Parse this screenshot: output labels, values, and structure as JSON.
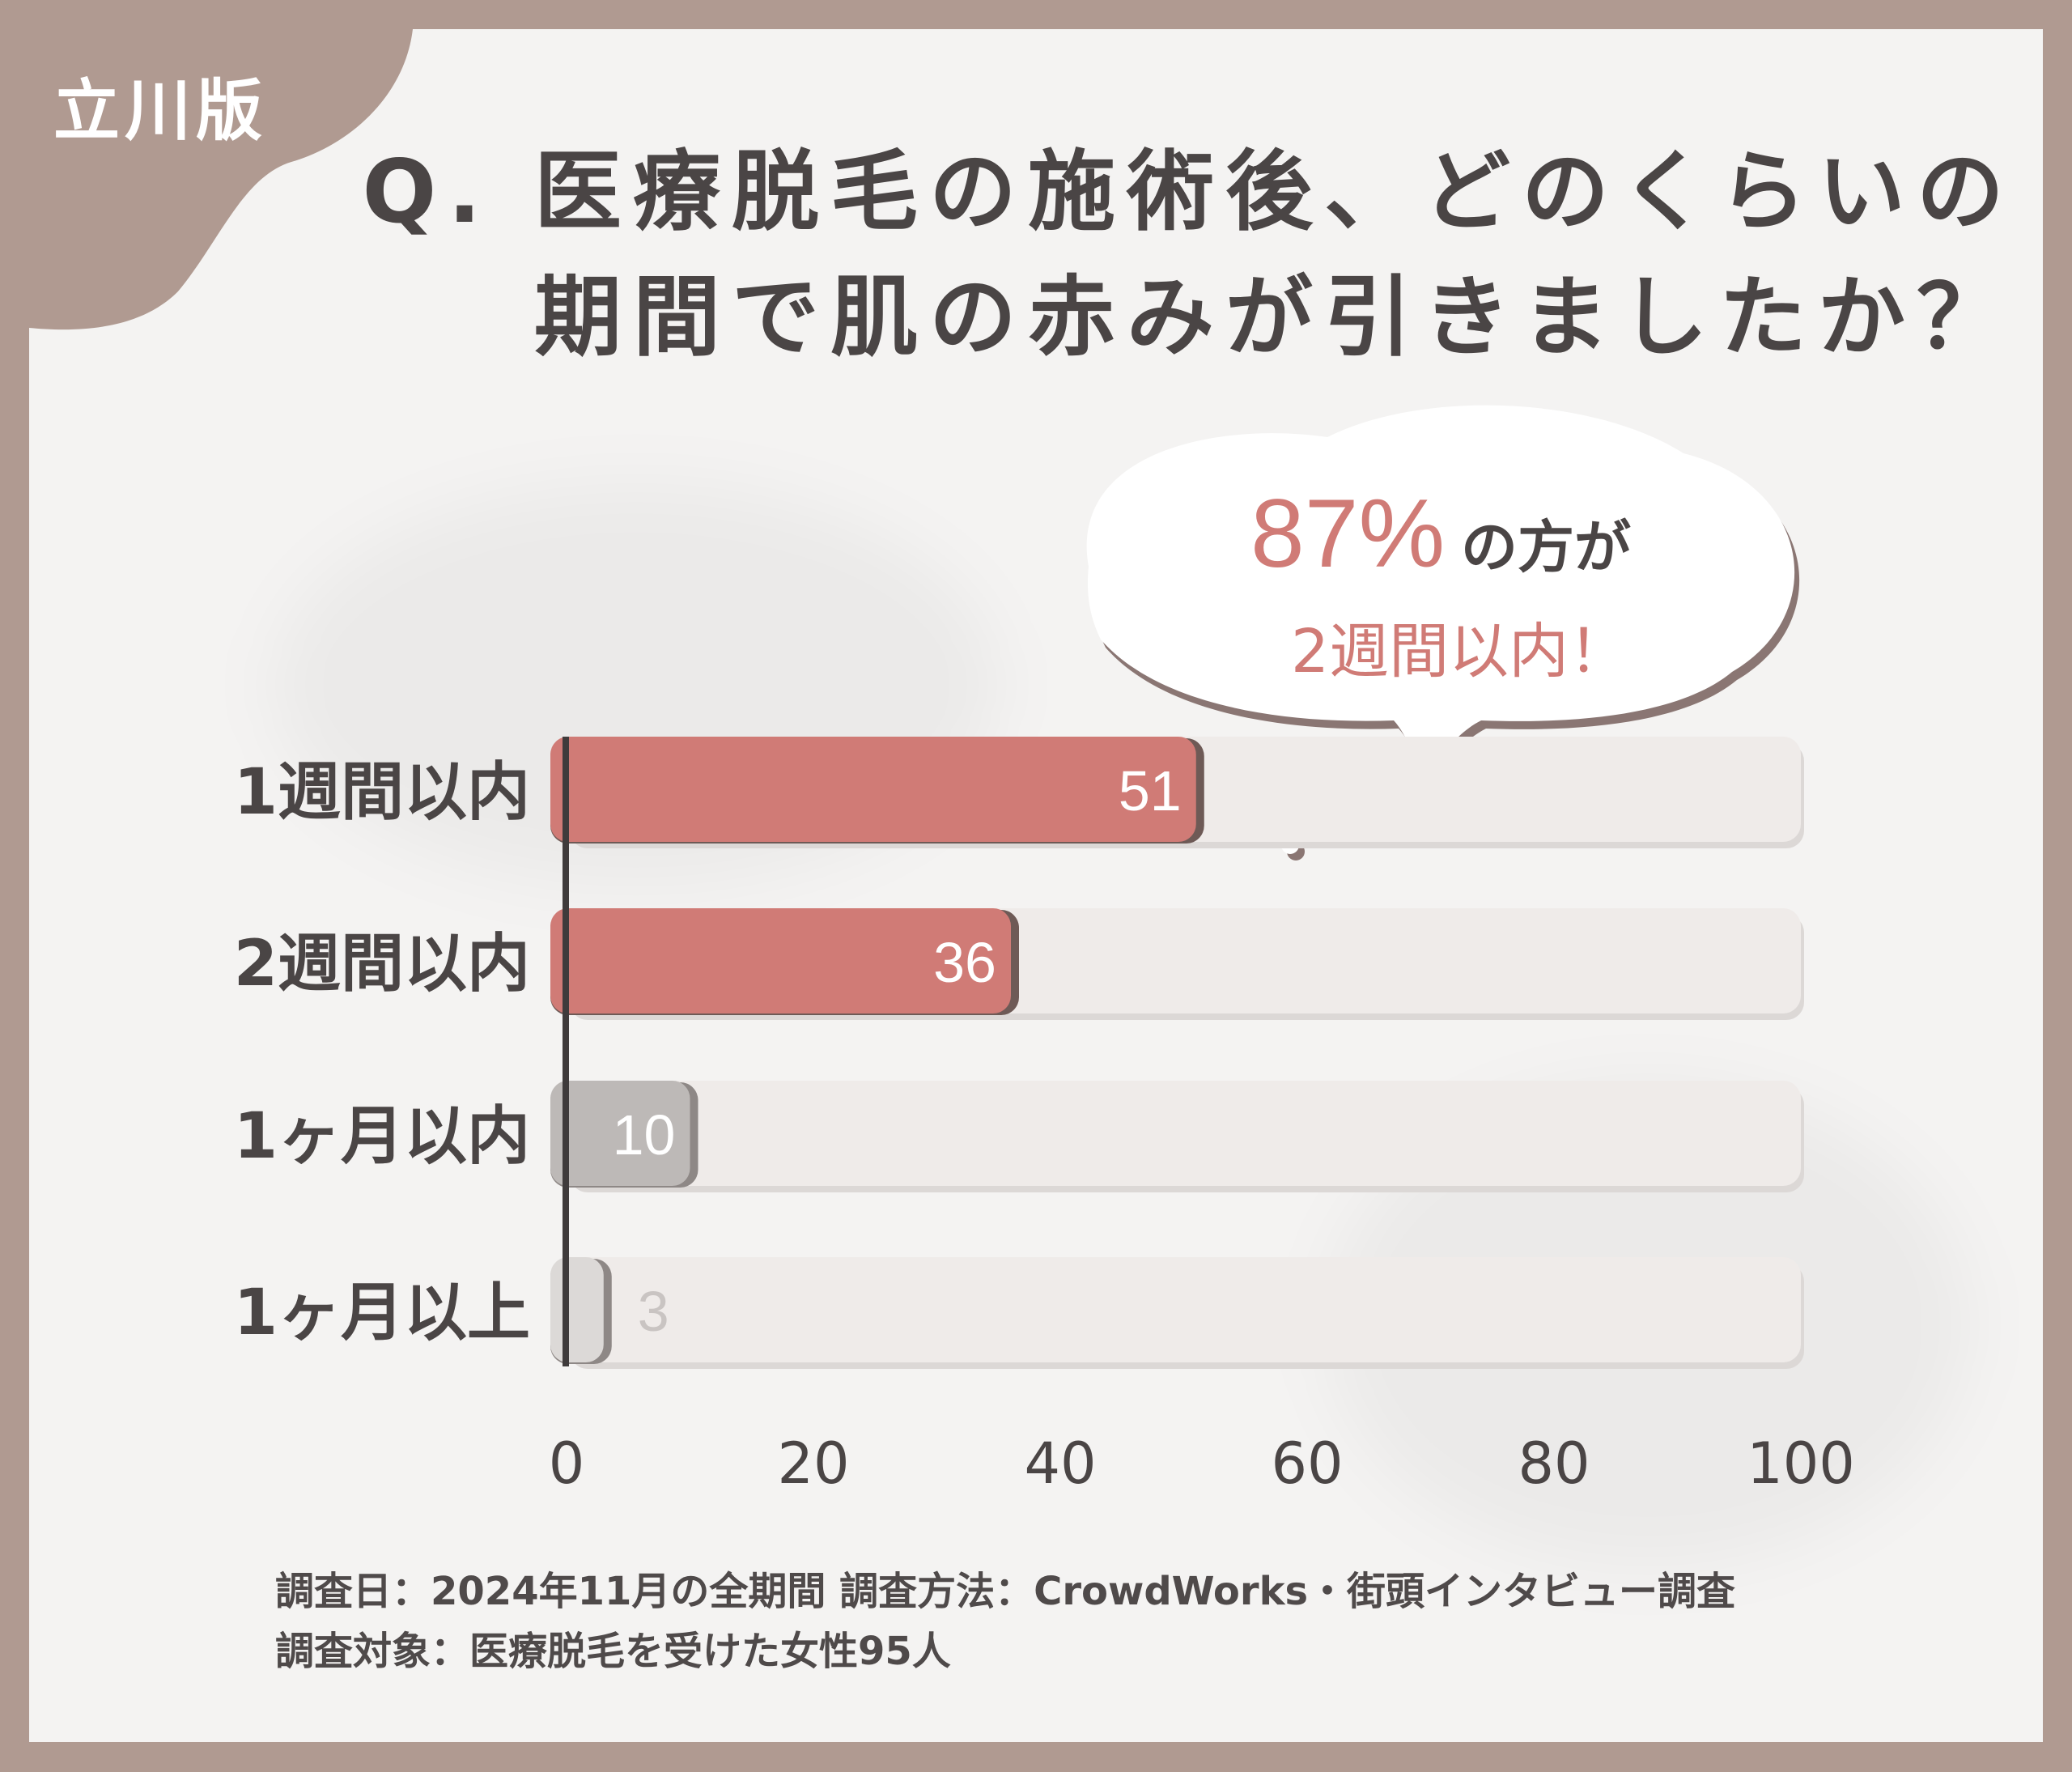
{
  "badge": "立川版",
  "title": {
    "line1": "Q. 医療脱毛の施術後、どのくらいの",
    "line2": "期間で肌の赤みが引きましたか？"
  },
  "callout": {
    "percent": "87%",
    "suffix": "の方が",
    "line2": "2週間以内！"
  },
  "footer": {
    "line1": "調査日：2024年11月の全期間 調査方法：CrowdWorks・街頭インタビュー調査",
    "line2": "調査対象：医療脱毛を受けた女性95人"
  },
  "colors": {
    "frame": "#b09a91",
    "highlight": "#d07b76",
    "highlight_shadow": "#6e5a56",
    "neutral": "#bdb9b7",
    "neutral_light": "#dcd9d7",
    "track": "#efebe9",
    "text": "#4a4545"
  },
  "chart_data": {
    "type": "bar",
    "orientation": "horizontal",
    "categories": [
      "1週間以内",
      "2週間以内",
      "1ヶ月以内",
      "1ヶ月以上"
    ],
    "values": [
      51,
      36,
      10,
      3
    ],
    "value_labels": [
      "51",
      "36",
      "10",
      "3"
    ],
    "highlight": [
      true,
      true,
      false,
      false
    ],
    "xlim": [
      0,
      100
    ],
    "xticks": [
      "0",
      "20",
      "40",
      "60",
      "80",
      "100"
    ],
    "title": "",
    "xlabel": "",
    "ylabel": ""
  }
}
